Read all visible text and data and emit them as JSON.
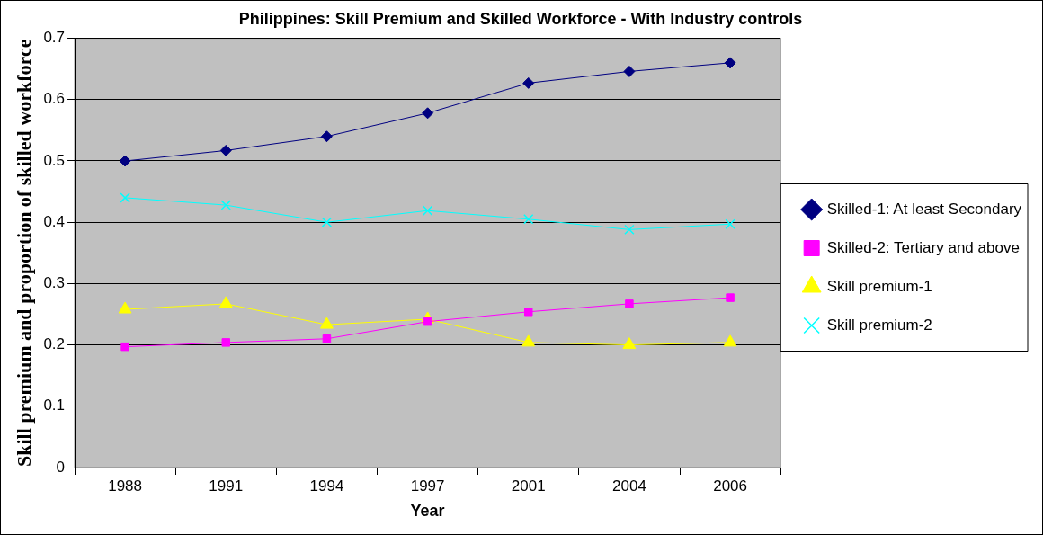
{
  "chart_data": {
    "type": "line",
    "title": "Philippines: Skill Premium and Skilled Workforce - With Industry controls",
    "xlabel": "Year",
    "ylabel": "Skill premium and proportion of skilled workforce",
    "categories": [
      "1988",
      "1991",
      "1994",
      "1997",
      "2001",
      "2004",
      "2006"
    ],
    "series": [
      {
        "name": "Skilled-1: At least Secondary",
        "color": "#000080",
        "marker": "diamond",
        "values": [
          0.5,
          0.517,
          0.54,
          0.578,
          0.627,
          0.646,
          0.66
        ]
      },
      {
        "name": "Skilled-2: Tertiary and above",
        "color": "#ff00ff",
        "marker": "square",
        "values": [
          0.197,
          0.204,
          0.21,
          0.238,
          0.254,
          0.267,
          0.277
        ]
      },
      {
        "name": "Skill premium-1",
        "color": "#ffff00",
        "marker": "triangle",
        "values": [
          0.258,
          0.267,
          0.233,
          0.242,
          0.204,
          0.2,
          0.204
        ]
      },
      {
        "name": "Skill premium-2",
        "color": "#00ffff",
        "marker": "cross",
        "values": [
          0.44,
          0.428,
          0.4,
          0.419,
          0.405,
          0.388,
          0.397
        ]
      }
    ],
    "ylim": [
      0,
      0.7
    ],
    "yticks": [
      0,
      0.1,
      0.2,
      0.3,
      0.4,
      0.5,
      0.6,
      0.7
    ],
    "grid": "y",
    "legend": "right"
  }
}
